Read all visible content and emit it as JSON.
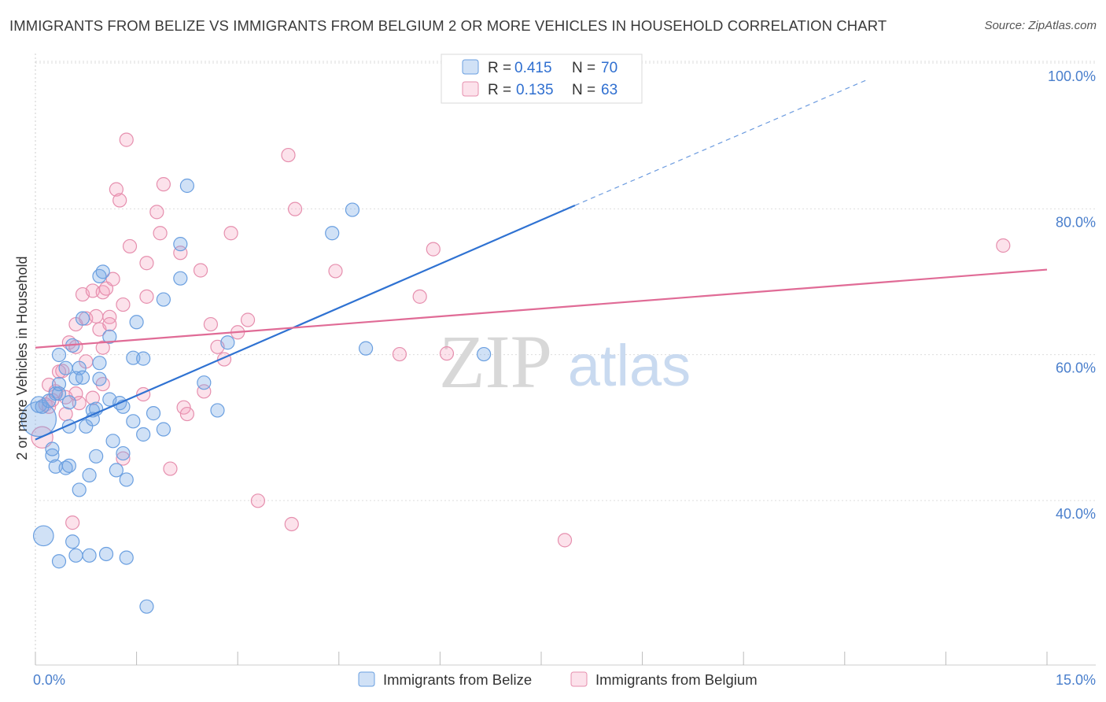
{
  "title": "IMMIGRANTS FROM BELIZE VS IMMIGRANTS FROM BELGIUM 2 OR MORE VEHICLES IN HOUSEHOLD CORRELATION CHART",
  "source": "Source: ZipAtlas.com",
  "watermark": {
    "zip": "ZIP",
    "atlas": "atlas"
  },
  "colors": {
    "belize_fill": "rgba(120,170,230,0.35)",
    "belize_stroke": "#6a9fe0",
    "belize_line": "#2f72d2",
    "belgium_fill": "rgba(245,160,190,0.30)",
    "belgium_stroke": "#e68fae",
    "belgium_line": "#e06b96",
    "tick_label": "#4a7fcc",
    "grid": "#dddddd"
  },
  "chart_data": {
    "type": "scatter",
    "xlabel": "",
    "ylabel": "2 or more Vehicles in Household",
    "xlim": [
      0,
      15
    ],
    "ylim": [
      20,
      103
    ],
    "x_tick_labels": [
      {
        "value": 0,
        "label": "0.0%"
      },
      {
        "value": 15,
        "label": "15.0%"
      }
    ],
    "y_tick_labels": [
      {
        "value": 40,
        "label": "40.0%"
      },
      {
        "value": 60,
        "label": "60.0%"
      },
      {
        "value": 80,
        "label": "80.0%"
      },
      {
        "value": 100,
        "label": "100.0%"
      }
    ],
    "legend": {
      "r_label": "R =",
      "n_label": "N =",
      "entries": [
        {
          "series": "Immigrants from Belize",
          "r": "0.415",
          "n": "70"
        },
        {
          "series": "Immigrants from Belgium",
          "r": "0.135",
          "n": "63"
        }
      ]
    },
    "series": [
      {
        "name": "Immigrants from Belize",
        "trend": {
          "x0": 0.0,
          "y0": 50.2,
          "x1": 8.0,
          "y1": 82.3,
          "dash_to_x": 12.35,
          "dash_to_y": 99.6
        },
        "points": [
          [
            0.05,
            53.0,
            2.6
          ],
          [
            0.05,
            55.0,
            1.2
          ],
          [
            0.1,
            54.7,
            1.0
          ],
          [
            0.2,
            55.5,
            1.0
          ],
          [
            0.3,
            56.5,
            1.0
          ],
          [
            0.12,
            37.0,
            1.5
          ],
          [
            0.25,
            48.0,
            1.0
          ],
          [
            0.25,
            48.9,
            1.0
          ],
          [
            0.3,
            46.5,
            1.0
          ],
          [
            0.35,
            61.8,
            1.0
          ],
          [
            0.35,
            56.5,
            1.0
          ],
          [
            0.35,
            57.8,
            1.0
          ],
          [
            0.35,
            33.5,
            1.0
          ],
          [
            0.45,
            60.0,
            1.0
          ],
          [
            0.45,
            46.3,
            1.0
          ],
          [
            0.5,
            46.6,
            1.0
          ],
          [
            0.5,
            55.3,
            1.0
          ],
          [
            0.5,
            52.0,
            1.0
          ],
          [
            0.55,
            63.1,
            1.0
          ],
          [
            0.55,
            36.2,
            1.0
          ],
          [
            0.6,
            34.3,
            1.0
          ],
          [
            0.6,
            58.6,
            1.0
          ],
          [
            0.65,
            43.3,
            1.0
          ],
          [
            0.65,
            60.0,
            1.0
          ],
          [
            0.7,
            66.8,
            1.0
          ],
          [
            0.7,
            58.7,
            1.0
          ],
          [
            0.75,
            52.0,
            1.0
          ],
          [
            0.8,
            45.3,
            1.0
          ],
          [
            0.8,
            34.3,
            1.0
          ],
          [
            0.85,
            54.2,
            1.0
          ],
          [
            0.85,
            53.0,
            1.0
          ],
          [
            0.9,
            47.9,
            1.0
          ],
          [
            0.9,
            54.4,
            1.0
          ],
          [
            0.95,
            58.5,
            1.0
          ],
          [
            0.95,
            60.7,
            1.0
          ],
          [
            0.95,
            72.6,
            1.0
          ],
          [
            1.0,
            73.2,
            1.0
          ],
          [
            1.05,
            34.5,
            1.0
          ],
          [
            1.1,
            64.3,
            1.0
          ],
          [
            1.1,
            55.7,
            1.0
          ],
          [
            1.15,
            50.0,
            1.0
          ],
          [
            1.2,
            46.0,
            1.0
          ],
          [
            1.25,
            55.2,
            1.0
          ],
          [
            1.3,
            54.7,
            1.0
          ],
          [
            1.3,
            48.3,
            1.0
          ],
          [
            1.35,
            34.0,
            1.0
          ],
          [
            1.35,
            44.7,
            1.0
          ],
          [
            1.45,
            52.7,
            1.0
          ],
          [
            1.45,
            61.4,
            1.0
          ],
          [
            1.5,
            66.3,
            1.0
          ],
          [
            1.6,
            50.9,
            1.0
          ],
          [
            1.6,
            61.3,
            1.0
          ],
          [
            1.65,
            27.3,
            1.0
          ],
          [
            1.75,
            53.8,
            1.0
          ],
          [
            1.9,
            51.6,
            1.0
          ],
          [
            1.9,
            69.4,
            1.0
          ],
          [
            2.15,
            72.3,
            1.0
          ],
          [
            2.15,
            77.0,
            1.0
          ],
          [
            2.25,
            85.0,
            1.0
          ],
          [
            2.5,
            58.0,
            1.0
          ],
          [
            2.7,
            54.2,
            1.0
          ],
          [
            2.85,
            63.5,
            1.0
          ],
          [
            4.4,
            78.5,
            1.0
          ],
          [
            4.7,
            81.7,
            1.0
          ],
          [
            4.9,
            62.7,
            1.0
          ],
          [
            6.65,
            61.9,
            1.0
          ]
        ]
      },
      {
        "name": "Immigrants from Belgium",
        "trend": {
          "x0": 0.0,
          "y0": 62.8,
          "x1": 15.0,
          "y1": 73.5
        },
        "points": [
          [
            0.1,
            50.5,
            1.6
          ],
          [
            0.15,
            55.0,
            1.0
          ],
          [
            0.2,
            54.7,
            1.0
          ],
          [
            0.2,
            57.7,
            1.0
          ],
          [
            0.25,
            55.6,
            1.0
          ],
          [
            0.3,
            56.8,
            1.0
          ],
          [
            0.35,
            59.5,
            1.0
          ],
          [
            0.4,
            59.6,
            1.0
          ],
          [
            0.45,
            53.7,
            1.0
          ],
          [
            0.45,
            56.0,
            1.0
          ],
          [
            0.5,
            63.5,
            1.0
          ],
          [
            0.55,
            38.8,
            1.0
          ],
          [
            0.6,
            66.0,
            1.0
          ],
          [
            0.6,
            62.9,
            1.0
          ],
          [
            0.6,
            56.5,
            1.0
          ],
          [
            0.65,
            55.2,
            1.0
          ],
          [
            0.7,
            70.1,
            1.0
          ],
          [
            0.75,
            66.8,
            1.0
          ],
          [
            0.75,
            60.9,
            1.0
          ],
          [
            0.85,
            70.6,
            1.0
          ],
          [
            0.85,
            55.9,
            1.0
          ],
          [
            0.9,
            67.1,
            1.0
          ],
          [
            0.95,
            65.3,
            1.0
          ],
          [
            1.0,
            62.8,
            1.0
          ],
          [
            1.0,
            57.8,
            1.0
          ],
          [
            1.0,
            70.4,
            1.0
          ],
          [
            1.05,
            70.9,
            1.0
          ],
          [
            1.1,
            67.0,
            1.0
          ],
          [
            1.1,
            66.0,
            1.0
          ],
          [
            1.15,
            72.2,
            1.0
          ],
          [
            1.2,
            84.5,
            1.0
          ],
          [
            1.25,
            83.0,
            1.0
          ],
          [
            1.3,
            47.6,
            1.0
          ],
          [
            1.3,
            68.7,
            1.0
          ],
          [
            1.35,
            91.3,
            1.0
          ],
          [
            1.4,
            76.7,
            1.0
          ],
          [
            1.6,
            56.4,
            1.0
          ],
          [
            1.65,
            74.4,
            1.0
          ],
          [
            1.65,
            69.8,
            1.0
          ],
          [
            1.8,
            81.4,
            1.0
          ],
          [
            1.85,
            78.5,
            1.0
          ],
          [
            1.9,
            85.2,
            1.0
          ],
          [
            2.0,
            46.2,
            1.0
          ],
          [
            2.15,
            75.8,
            1.0
          ],
          [
            2.2,
            54.6,
            1.0
          ],
          [
            2.25,
            53.7,
            1.0
          ],
          [
            2.45,
            73.4,
            1.0
          ],
          [
            2.5,
            56.8,
            1.0
          ],
          [
            2.6,
            66.0,
            1.0
          ],
          [
            2.7,
            62.9,
            1.0
          ],
          [
            2.8,
            61.2,
            1.0
          ],
          [
            2.9,
            78.5,
            1.0
          ],
          [
            3.0,
            64.9,
            1.0
          ],
          [
            3.15,
            66.6,
            1.0
          ],
          [
            3.3,
            41.8,
            1.0
          ],
          [
            3.75,
            89.2,
            1.0
          ],
          [
            3.8,
            38.6,
            1.0
          ],
          [
            3.85,
            81.8,
            1.0
          ],
          [
            4.45,
            73.3,
            1.0
          ],
          [
            5.4,
            61.9,
            1.0
          ],
          [
            5.7,
            69.8,
            1.0
          ],
          [
            5.9,
            76.3,
            1.0
          ],
          [
            7.85,
            36.4,
            1.0
          ],
          [
            14.35,
            76.8,
            1.0
          ],
          [
            6.1,
            62.0,
            1.0
          ]
        ]
      }
    ]
  }
}
